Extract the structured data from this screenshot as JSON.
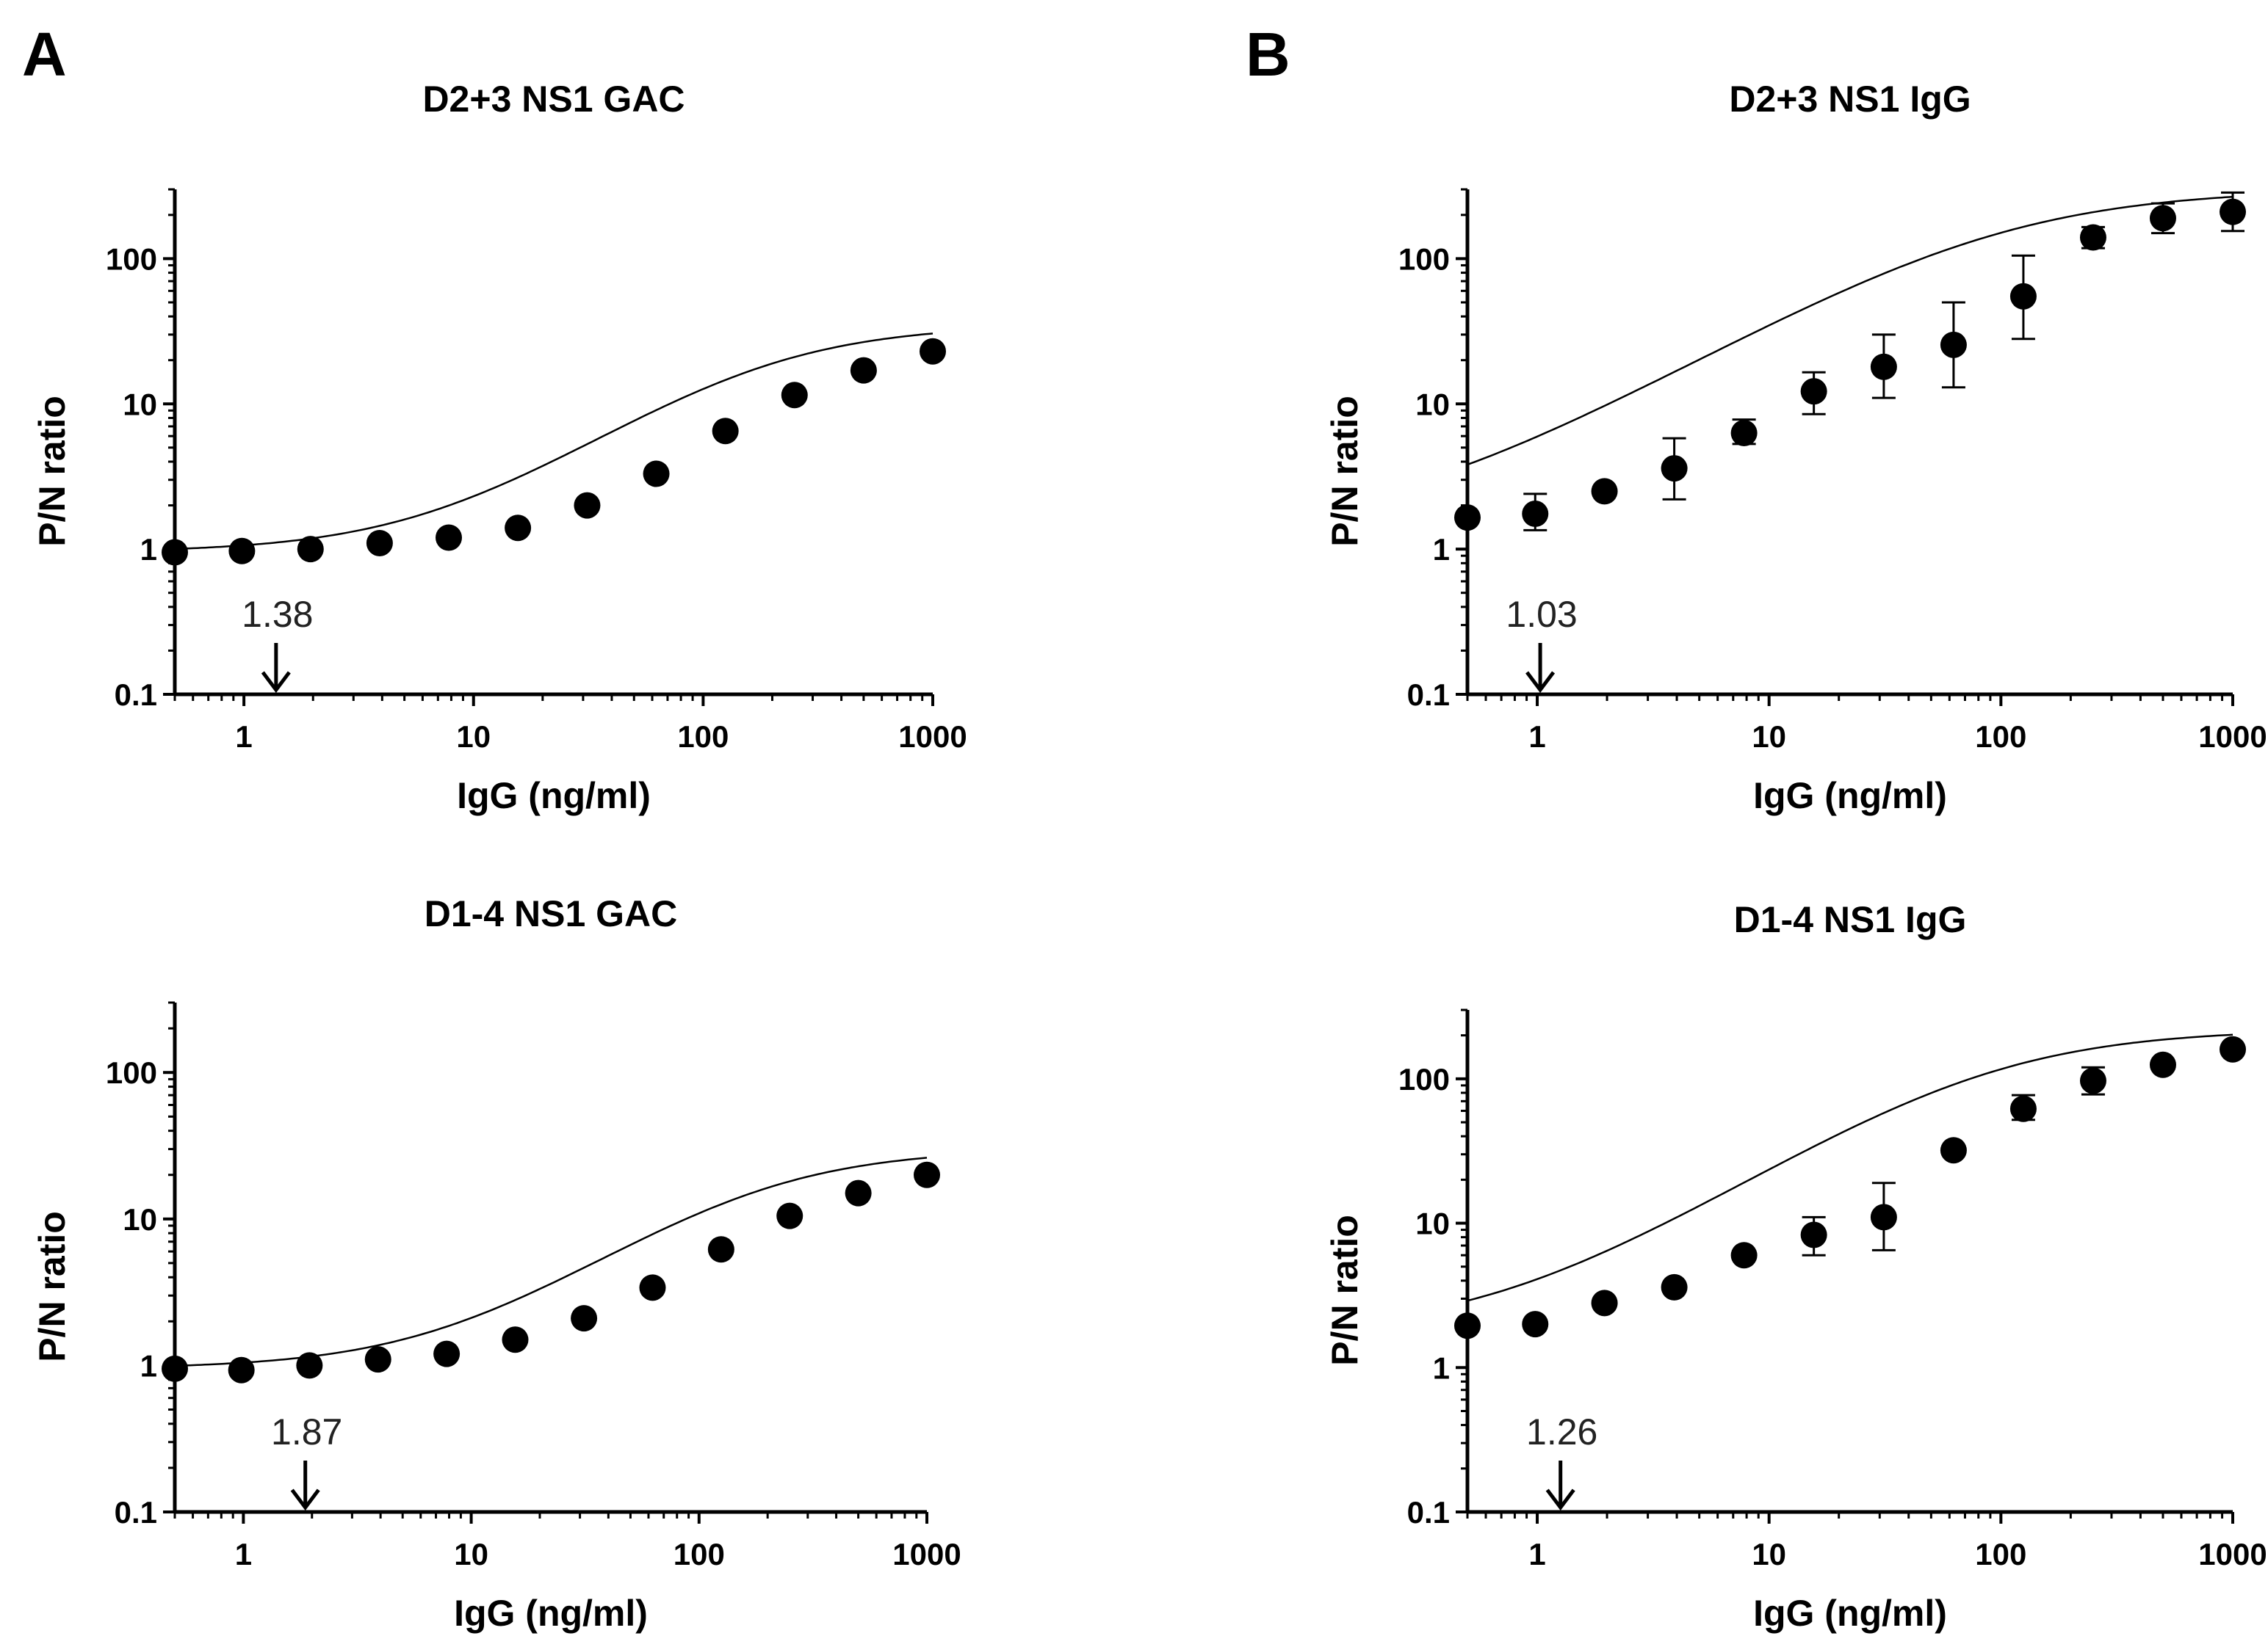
{
  "panels": [
    {
      "letter": "A"
    },
    {
      "letter": "B"
    }
  ],
  "chart_data": [
    {
      "type": "scatter",
      "panel": "A",
      "title": "D2+3 NS1 GAC",
      "xlabel": "IgG (ng/ml)",
      "ylabel": "P/N ratio",
      "xscale": "log",
      "yscale": "log",
      "xlim": [
        0.5,
        1000
      ],
      "ylim": [
        0.1,
        300
      ],
      "xticks": [
        1,
        10,
        100,
        1000
      ],
      "xtick_labels": [
        "1",
        "10",
        "100",
        "1000"
      ],
      "yticks": [
        0.1,
        1,
        10,
        100
      ],
      "ytick_labels": [
        "0.1",
        "1",
        "10",
        "100"
      ],
      "x": [
        0.49,
        0.98,
        1.95,
        3.9,
        7.8,
        15.6,
        31.25,
        62.5,
        125,
        250,
        500,
        1000
      ],
      "y": [
        0.95,
        0.97,
        1.0,
        1.1,
        1.2,
        1.4,
        2.0,
        3.3,
        6.5,
        11.5,
        17,
        23
      ],
      "err": [
        0,
        0,
        0,
        0,
        0,
        0,
        0,
        0,
        0,
        0,
        0,
        0
      ],
      "fit": {
        "bottom": 0.95,
        "top": 35,
        "ec50": 180,
        "hill": 1.1
      },
      "annotation": {
        "label": "1.38",
        "x": 1.38
      }
    },
    {
      "type": "scatter",
      "panel": "B",
      "title": "D2+3 NS1 IgG",
      "xlabel": "IgG (ng/ml)",
      "ylabel": "P/N ratio",
      "xscale": "log",
      "yscale": "log",
      "xlim": [
        0.5,
        1000
      ],
      "ylim": [
        0.1,
        300
      ],
      "xticks": [
        1,
        10,
        100,
        1000
      ],
      "xtick_labels": [
        "1",
        "10",
        "100",
        "1000"
      ],
      "yticks": [
        0.1,
        1,
        10,
        100
      ],
      "ytick_labels": [
        "0.1",
        "1",
        "10",
        "100"
      ],
      "x": [
        0.49,
        0.98,
        1.95,
        3.9,
        7.8,
        15.6,
        31.25,
        62.5,
        125,
        250,
        500,
        1000
      ],
      "y": [
        1.65,
        1.75,
        2.5,
        3.6,
        6.3,
        12.2,
        18,
        25.5,
        55,
        140,
        190,
        210
      ],
      "err_low": [
        1.65,
        1.35,
        2.5,
        2.2,
        5.3,
        8.5,
        11,
        13,
        28,
        118,
        150,
        155
      ],
      "err_high": [
        1.65,
        2.4,
        2.5,
        5.8,
        7.8,
        16.5,
        30,
        50,
        105,
        165,
        240,
        285
      ],
      "fit": {
        "bottom": 1.3,
        "top": 300,
        "ec50": 100,
        "hill": 0.9
      },
      "annotation": {
        "label": "1.03",
        "x": 1.03
      }
    },
    {
      "type": "scatter",
      "panel": "A",
      "title": "D1-4 NS1 GAC",
      "xlabel": "IgG (ng/ml)",
      "ylabel": "P/N ratio",
      "xscale": "log",
      "yscale": "log",
      "xlim": [
        0.5,
        1000
      ],
      "ylim": [
        0.1,
        300
      ],
      "xticks": [
        1,
        10,
        100,
        1000
      ],
      "xtick_labels": [
        "1",
        "10",
        "100",
        "1000"
      ],
      "yticks": [
        0.1,
        1,
        10,
        100
      ],
      "ytick_labels": [
        "0.1",
        "1",
        "10",
        "100"
      ],
      "x": [
        0.49,
        0.98,
        1.95,
        3.9,
        7.8,
        15.6,
        31.25,
        62.5,
        125,
        250,
        500,
        1000
      ],
      "y": [
        0.95,
        0.93,
        1.0,
        1.1,
        1.2,
        1.5,
        2.1,
        3.4,
        6.2,
        10.5,
        15,
        20
      ],
      "err": [
        0,
        0,
        0,
        0,
        0,
        0,
        0,
        0,
        0,
        0,
        0,
        0
      ],
      "fit": {
        "bottom": 0.95,
        "top": 30,
        "ec50": 180,
        "hill": 1.1
      },
      "annotation": {
        "label": "1.87",
        "x": 1.87
      }
    },
    {
      "type": "scatter",
      "panel": "B",
      "title": "D1-4 NS1 IgG",
      "xlabel": "IgG (ng/ml)",
      "ylabel": "P/N ratio",
      "xscale": "log",
      "yscale": "log",
      "xlim": [
        0.5,
        1000
      ],
      "ylim": [
        0.1,
        300
      ],
      "xticks": [
        1,
        10,
        100,
        1000
      ],
      "xtick_labels": [
        "1",
        "10",
        "100",
        "1000"
      ],
      "yticks": [
        0.1,
        1,
        10,
        100
      ],
      "ytick_labels": [
        "0.1",
        "1",
        "10",
        "100"
      ],
      "x": [
        0.49,
        0.98,
        1.95,
        3.9,
        7.8,
        15.6,
        31.25,
        62.5,
        125,
        250,
        500,
        1000
      ],
      "y": [
        1.95,
        2.0,
        2.8,
        3.6,
        6.0,
        8.3,
        11,
        32,
        62,
        97,
        125,
        160
      ],
      "err_low": [
        1.95,
        2.0,
        2.8,
        3.6,
        6.0,
        6.0,
        6.5,
        32,
        52,
        78,
        125,
        160
      ],
      "err_high": [
        1.95,
        2.0,
        2.8,
        3.6,
        6.0,
        11,
        19,
        32,
        77,
        120,
        125,
        160
      ],
      "fit": {
        "bottom": 1.7,
        "top": 220,
        "ec50": 90,
        "hill": 1.0
      },
      "annotation": {
        "label": "1.26",
        "x": 1.26
      }
    }
  ]
}
